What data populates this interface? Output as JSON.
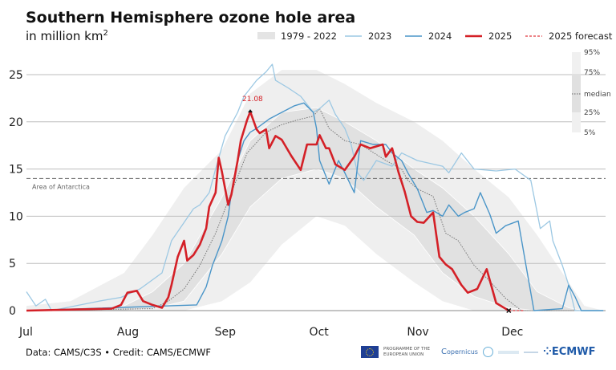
{
  "header": {
    "title": "Southern Hemisphere ozone hole area",
    "subtitle": "in million km",
    "subtitle_sup": "2"
  },
  "legend": {
    "range": "1979 - 2022",
    "y2023": "2023",
    "y2024": "2024",
    "y2025": "2025",
    "forecast": "2025 forecast",
    "percentiles": {
      "p95": "95%",
      "p75": "75%",
      "median": "median",
      "p25": "25%",
      "p5": "5%"
    }
  },
  "colors": {
    "c2023": "#9cc8e3",
    "c2024": "#4a95c8",
    "c2025": "#d42027",
    "forecast": "#e0383e",
    "band_outer": "#efefef",
    "band_inner": "#e1e1e1",
    "median": "#777777",
    "grid": "#bdbdbd"
  },
  "footer": {
    "credit": "Data: CAMS/C3S • Credit: CAMS/ECMWF",
    "logos": {
      "eu": "PROGRAMME OF THE EUROPEAN UNION",
      "copernicus": "opernicus",
      "ecmwf": "ECMWF"
    }
  },
  "chart_data": {
    "type": "line",
    "title": "Southern Hemisphere ozone hole area",
    "ylabel": "in million km²",
    "ylim": [
      0,
      27
    ],
    "yticks": [
      "0",
      "5",
      "10",
      "15",
      "20",
      "25"
    ],
    "xticks": [
      "Jul",
      "Aug",
      "Sep",
      "Oct",
      "Nov",
      "Dec"
    ],
    "xrange": [
      "07-01",
      "12-31"
    ],
    "grid": true,
    "legend_position": "top",
    "reference_line": {
      "label": "Area of Antarctica",
      "value": 14
    },
    "annotation": {
      "label": "21.08",
      "date": "09-10",
      "value": 21.08
    },
    "bands_1979_2022": [
      {
        "date": "07-01",
        "p5": 0,
        "p25": 0,
        "p75": 0,
        "p95": 0.5
      },
      {
        "date": "07-15",
        "p5": 0,
        "p25": 0,
        "p75": 0,
        "p95": 1
      },
      {
        "date": "08-01",
        "p5": 0,
        "p25": 0,
        "p75": 0.5,
        "p95": 4
      },
      {
        "date": "08-10",
        "p5": 0,
        "p25": 0.2,
        "p75": 2,
        "p95": 8
      },
      {
        "date": "08-20",
        "p5": 0,
        "p25": 1,
        "p75": 5,
        "p95": 13
      },
      {
        "date": "09-01",
        "p5": 1,
        "p25": 6,
        "p75": 12,
        "p95": 17
      },
      {
        "date": "09-10",
        "p5": 3,
        "p25": 11,
        "p75": 18,
        "p95": 23
      },
      {
        "date": "09-20",
        "p5": 7,
        "p25": 14,
        "p75": 21,
        "p95": 25.5
      },
      {
        "date": "10-01",
        "p5": 10,
        "p25": 15,
        "p75": 21.5,
        "p95": 25.5
      },
      {
        "date": "10-10",
        "p5": 9,
        "p25": 14,
        "p75": 20,
        "p95": 24
      },
      {
        "date": "10-20",
        "p5": 6,
        "p25": 11,
        "p75": 18,
        "p95": 22
      },
      {
        "date": "11-01",
        "p5": 3,
        "p25": 8,
        "p75": 15,
        "p95": 20
      },
      {
        "date": "11-10",
        "p5": 1,
        "p25": 4,
        "p75": 13,
        "p95": 18
      },
      {
        "date": "11-20",
        "p5": 0,
        "p25": 1.5,
        "p75": 10,
        "p95": 15
      },
      {
        "date": "12-01",
        "p5": 0,
        "p25": 0.3,
        "p75": 6,
        "p95": 12
      },
      {
        "date": "12-10",
        "p5": 0,
        "p25": 0,
        "p75": 2,
        "p95": 8
      },
      {
        "date": "12-20",
        "p5": 0,
        "p25": 0,
        "p75": 0.3,
        "p95": 3
      },
      {
        "date": "12-25",
        "p5": 0,
        "p25": 0,
        "p75": 0,
        "p95": 0.5
      },
      {
        "date": "12-31",
        "p5": 0,
        "p25": 0,
        "p75": 0,
        "p95": 0
      }
    ],
    "series": [
      {
        "name": "median",
        "points": [
          [
            "07-01",
            0
          ],
          [
            "08-10",
            0.2
          ],
          [
            "08-15",
            1
          ],
          [
            "08-20",
            2.3
          ],
          [
            "08-25",
            4.8
          ],
          [
            "08-30",
            8.2
          ],
          [
            "09-04",
            12.5
          ],
          [
            "09-09",
            16.7
          ],
          [
            "09-15",
            18.9
          ],
          [
            "09-20",
            19.7
          ],
          [
            "09-25",
            20.2
          ],
          [
            "09-30",
            20.6
          ],
          [
            "10-02",
            21.4
          ],
          [
            "10-05",
            19.3
          ],
          [
            "10-10",
            18
          ],
          [
            "10-15",
            17.6
          ],
          [
            "10-23",
            15.9
          ],
          [
            "10-28",
            15
          ],
          [
            "10-30",
            13.8
          ],
          [
            "11-02",
            12.9
          ],
          [
            "11-07",
            12.1
          ],
          [
            "11-11",
            8.2
          ],
          [
            "11-15",
            7.4
          ],
          [
            "11-20",
            4.8
          ],
          [
            "11-25",
            3.1
          ],
          [
            "11-30",
            1.3
          ],
          [
            "12-05",
            0
          ],
          [
            "12-31",
            0
          ]
        ]
      },
      {
        "name": "2023",
        "points": [
          [
            "07-01",
            2.0
          ],
          [
            "07-04",
            0.5
          ],
          [
            "07-07",
            1.2
          ],
          [
            "07-09",
            0
          ],
          [
            "07-24",
            1.0
          ],
          [
            "07-31",
            1.4
          ],
          [
            "08-06",
            2.3
          ],
          [
            "08-13",
            4.0
          ],
          [
            "08-16",
            7.4
          ],
          [
            "08-23",
            10.8
          ],
          [
            "08-25",
            11.2
          ],
          [
            "08-28",
            12.5
          ],
          [
            "08-30",
            15
          ],
          [
            "09-02",
            18.5
          ],
          [
            "09-06",
            21
          ],
          [
            "09-08",
            22.7
          ],
          [
            "09-12",
            24.4
          ],
          [
            "09-15",
            25.3
          ],
          [
            "09-17",
            26.1
          ],
          [
            "09-18",
            24.4
          ],
          [
            "09-22",
            23.6
          ],
          [
            "09-26",
            22.7
          ],
          [
            "09-30",
            21
          ],
          [
            "10-02",
            21.4
          ],
          [
            "10-05",
            22.3
          ],
          [
            "10-07",
            20.8
          ],
          [
            "10-10",
            19.3
          ],
          [
            "10-12",
            17.6
          ],
          [
            "10-14",
            14.6
          ],
          [
            "10-16",
            13.8
          ],
          [
            "10-20",
            15.9
          ],
          [
            "10-25",
            15.3
          ],
          [
            "10-28",
            16.7
          ],
          [
            "11-02",
            15.9
          ],
          [
            "11-10",
            15.3
          ],
          [
            "11-12",
            14.6
          ],
          [
            "11-16",
            16.7
          ],
          [
            "11-20",
            15
          ],
          [
            "11-27",
            14.8
          ],
          [
            "12-03",
            15
          ],
          [
            "12-08",
            13.8
          ],
          [
            "12-10",
            10.4
          ],
          [
            "12-11",
            8.7
          ],
          [
            "12-14",
            9.5
          ],
          [
            "12-15",
            7.4
          ],
          [
            "12-18",
            4.8
          ],
          [
            "12-20",
            2.7
          ],
          [
            "12-22",
            0
          ],
          [
            "12-31",
            0
          ]
        ]
      },
      {
        "name": "2024",
        "points": [
          [
            "07-01",
            0
          ],
          [
            "08-15",
            0.5
          ],
          [
            "08-24",
            0.6
          ],
          [
            "08-27",
            2.5
          ],
          [
            "08-29",
            4.8
          ],
          [
            "09-01",
            7.4
          ],
          [
            "09-03",
            10
          ],
          [
            "09-04",
            12.5
          ],
          [
            "09-06",
            15.9
          ],
          [
            "09-08",
            18.0
          ],
          [
            "09-10",
            18.9
          ],
          [
            "09-12",
            19.3
          ],
          [
            "09-16",
            20.3
          ],
          [
            "09-20",
            21
          ],
          [
            "09-24",
            21.7
          ],
          [
            "09-27",
            22
          ],
          [
            "09-30",
            21
          ],
          [
            "10-01",
            19.3
          ],
          [
            "10-02",
            15.9
          ],
          [
            "10-05",
            13.4
          ],
          [
            "10-08",
            15.9
          ],
          [
            "10-10",
            14.6
          ],
          [
            "10-13",
            12.5
          ],
          [
            "10-15",
            18
          ],
          [
            "10-19",
            17.6
          ],
          [
            "10-23",
            17.6
          ],
          [
            "10-25",
            16.7
          ],
          [
            "10-28",
            15.9
          ],
          [
            "10-30",
            14.6
          ],
          [
            "11-02",
            12.9
          ],
          [
            "11-05",
            10.4
          ],
          [
            "11-07",
            10.6
          ],
          [
            "11-10",
            10
          ],
          [
            "11-12",
            11.2
          ],
          [
            "11-15",
            10.0
          ],
          [
            "11-17",
            10.4
          ],
          [
            "11-20",
            10.8
          ],
          [
            "11-22",
            12.5
          ],
          [
            "11-25",
            10.2
          ],
          [
            "11-27",
            8.2
          ],
          [
            "11-30",
            9
          ],
          [
            "12-04",
            9.5
          ],
          [
            "12-06",
            5.7
          ],
          [
            "12-09",
            0
          ],
          [
            "12-18",
            0.2
          ],
          [
            "12-20",
            2.7
          ],
          [
            "12-22",
            1.5
          ],
          [
            "12-24",
            0
          ],
          [
            "12-31",
            0
          ]
        ]
      },
      {
        "name": "2025",
        "points": [
          [
            "07-01",
            0
          ],
          [
            "07-28",
            0.2
          ],
          [
            "07-31",
            0.6
          ],
          [
            "08-02",
            1.9
          ],
          [
            "08-05",
            2.1
          ],
          [
            "08-07",
            1.0
          ],
          [
            "08-10",
            0.6
          ],
          [
            "08-13",
            0.3
          ],
          [
            "08-15",
            1.4
          ],
          [
            "08-16",
            2.7
          ],
          [
            "08-18",
            5.7
          ],
          [
            "08-20",
            7.4
          ],
          [
            "08-21",
            5.3
          ],
          [
            "08-23",
            5.9
          ],
          [
            "08-25",
            7.0
          ],
          [
            "08-27",
            8.7
          ],
          [
            "08-28",
            11.0
          ],
          [
            "08-30",
            12.5
          ],
          [
            "08-31",
            16.2
          ],
          [
            "09-01",
            14.7
          ],
          [
            "09-03",
            11.2
          ],
          [
            "09-04",
            12.3
          ],
          [
            "09-06",
            15.9
          ],
          [
            "09-07",
            18.0
          ],
          [
            "09-09",
            20.2
          ],
          [
            "09-10",
            21.08
          ],
          [
            "09-12",
            19.2
          ],
          [
            "09-13",
            18.8
          ],
          [
            "09-15",
            19.2
          ],
          [
            "09-16",
            17.2
          ],
          [
            "09-18",
            18.5
          ],
          [
            "09-20",
            18.1
          ],
          [
            "09-23",
            16.4
          ],
          [
            "09-26",
            14.9
          ],
          [
            "09-28",
            17.6
          ],
          [
            "10-01",
            17.6
          ],
          [
            "10-02",
            18.6
          ],
          [
            "10-04",
            17.2
          ],
          [
            "10-05",
            17.2
          ],
          [
            "10-07",
            15.5
          ],
          [
            "10-10",
            14.9
          ],
          [
            "10-13",
            16.3
          ],
          [
            "10-15",
            17.6
          ],
          [
            "10-18",
            17.2
          ],
          [
            "10-22",
            17.6
          ],
          [
            "10-23",
            16.3
          ],
          [
            "10-25",
            17.2
          ],
          [
            "10-27",
            14.7
          ],
          [
            "10-29",
            12.6
          ],
          [
            "10-31",
            10.0
          ],
          [
            "11-02",
            9.4
          ],
          [
            "11-04",
            9.3
          ],
          [
            "11-07",
            10.4
          ],
          [
            "11-09",
            5.7
          ],
          [
            "11-11",
            4.9
          ],
          [
            "11-13",
            4.4
          ],
          [
            "11-16",
            2.7
          ],
          [
            "11-18",
            1.9
          ],
          [
            "11-21",
            2.3
          ],
          [
            "11-24",
            4.4
          ],
          [
            "11-25",
            3.2
          ],
          [
            "11-27",
            0.8
          ],
          [
            "11-30",
            0.2
          ],
          [
            "12-01",
            0
          ]
        ]
      },
      {
        "name": "2025 forecast",
        "points": [
          [
            "12-01",
            0
          ],
          [
            "12-06",
            0
          ]
        ]
      }
    ]
  }
}
